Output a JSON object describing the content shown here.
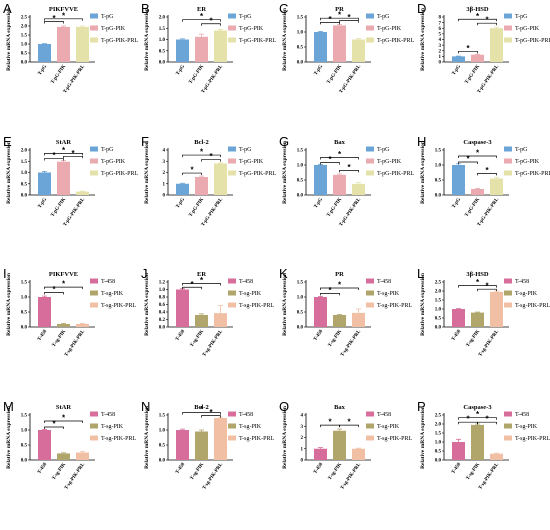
{
  "colors": {
    "top": [
      "#6ba4d6",
      "#eaaab0",
      "#e4e2a8"
    ],
    "bottom": [
      "#d76d9a",
      "#b0a66c",
      "#f1c0a4"
    ],
    "error": "#000000"
  },
  "chart_data": [
    {
      "letter": "A",
      "title": "PIKFVVE",
      "type": "bar",
      "categories": [
        "T-pG",
        "T-pG-PIK",
        "T-pG-PIK-PRL"
      ],
      "values": [
        1.0,
        1.95,
        1.95
      ],
      "errors": [
        0.02,
        0.05,
        0.05
      ],
      "ylim": [
        0,
        2.5
      ],
      "yticks": [
        0.0,
        0.5,
        1.0,
        1.5,
        2.0,
        2.5
      ],
      "ylabel": "Relative mRNA expression",
      "legend": [
        "T-pG",
        "T-pG-PIK",
        "T-pG-PIK-PRL"
      ],
      "legend_position": "right",
      "palette": "top",
      "sig": [
        [
          0,
          1,
          2.25
        ],
        [
          0,
          2,
          2.4
        ]
      ]
    },
    {
      "letter": "B",
      "title": "ER",
      "type": "bar",
      "categories": [
        "T-pG",
        "T-pG-PIK",
        "T-pG-PIK-PRL"
      ],
      "values": [
        1.0,
        1.12,
        1.4
      ],
      "errors": [
        0.03,
        0.12,
        0.05
      ],
      "ylim": [
        0,
        2.0
      ],
      "yticks": [
        0.0,
        0.5,
        1.0,
        1.5,
        2.0
      ],
      "ylabel": "Relative mRNA expression",
      "legend": [
        "T-pG",
        "T-pG-PIK",
        "T-pG-PIK-PRL"
      ],
      "legend_position": "right",
      "palette": "top",
      "sig": [
        [
          1,
          2,
          1.7
        ],
        [
          0,
          2,
          1.88
        ]
      ]
    },
    {
      "letter": "C",
      "title": "PR",
      "type": "bar",
      "categories": [
        "T-pG",
        "T-pG-PIK",
        "T-pG-PIK-PRL"
      ],
      "values": [
        1.0,
        1.22,
        0.75
      ],
      "errors": [
        0.02,
        0.03,
        0.03
      ],
      "ylim": [
        0,
        1.5
      ],
      "yticks": [
        0.0,
        0.5,
        1.0,
        1.5
      ],
      "ylabel": "Relative mRNA expression",
      "legend": [
        "T-pG",
        "T-pG-PIK",
        "T-pG-PIK-PRL"
      ],
      "legend_position": "right",
      "palette": "top",
      "sig": [
        [
          0,
          1,
          1.32
        ],
        [
          1,
          2,
          1.38
        ],
        [
          0,
          2,
          1.46
        ]
      ]
    },
    {
      "letter": "D",
      "title": "3β-HSD",
      "type": "bar",
      "categories": [
        "T-pG",
        "T-pG-PIK",
        "T-pG-PIK-PRL"
      ],
      "values": [
        1.0,
        1.3,
        6.0
      ],
      "errors": [
        0.05,
        0.08,
        0.2
      ],
      "ylim": [
        0,
        8
      ],
      "yticks": [
        0,
        1,
        2,
        3,
        4,
        5,
        6,
        7,
        8
      ],
      "ylabel": "Relative mRNA expression",
      "legend": [
        "T-pG",
        "T-pG-PIK",
        "T-pG-PIK-PRL"
      ],
      "legend_position": "right",
      "palette": "top",
      "sig": [
        [
          0,
          1,
          1.9
        ],
        [
          1,
          2,
          6.9
        ],
        [
          0,
          2,
          7.6
        ]
      ]
    },
    {
      "letter": "E",
      "title": "StAR",
      "type": "bar",
      "categories": [
        "T-pG",
        "T-pG-PIK",
        "T-pG-PIK-PRL"
      ],
      "values": [
        1.0,
        1.48,
        0.15
      ],
      "errors": [
        0.05,
        0.05,
        0.02
      ],
      "ylim": [
        0,
        2.0
      ],
      "yticks": [
        0.0,
        0.5,
        1.0,
        1.5,
        2.0
      ],
      "ylabel": "Relative mRNA expression",
      "legend": [
        "T-pG",
        "T-pG-PIK",
        "T-pG-PIK-PRL"
      ],
      "legend_position": "right",
      "palette": "top",
      "sig": [
        [
          0,
          1,
          1.62
        ],
        [
          1,
          2,
          1.72
        ],
        [
          0,
          2,
          1.85
        ]
      ]
    },
    {
      "letter": "F",
      "title": "Bcl-2",
      "type": "bar",
      "categories": [
        "T-pG",
        "T-pG-PIK",
        "T-pG-PIK-PRL"
      ],
      "values": [
        1.0,
        1.6,
        2.8
      ],
      "errors": [
        0.05,
        0.08,
        0.05
      ],
      "ylim": [
        0,
        4
      ],
      "yticks": [
        0,
        1,
        2,
        3,
        4
      ],
      "ylabel": "Relative mRNA expression",
      "legend": [
        "T-pG",
        "T-pG-PIK",
        "T-pG-PIK-PRL"
      ],
      "legend_position": "right",
      "palette": "top",
      "sig": [
        [
          0,
          1,
          1.95
        ],
        [
          1,
          2,
          3.15
        ],
        [
          0,
          2,
          3.55
        ]
      ]
    },
    {
      "letter": "G",
      "title": "Bax",
      "type": "bar",
      "categories": [
        "T-pG",
        "T-pG-PIK",
        "T-pG-PIK-PRL"
      ],
      "values": [
        1.0,
        0.67,
        0.37
      ],
      "errors": [
        0.02,
        0.03,
        0.04
      ],
      "ylim": [
        0,
        1.5
      ],
      "yticks": [
        0.0,
        0.5,
        1.0,
        1.5
      ],
      "ylabel": "Relative mRNA expression",
      "legend": [
        "T-pG",
        "T-pG-PIK",
        "T-pG-PIK-PRL"
      ],
      "legend_position": "right",
      "palette": "top",
      "sig": [
        [
          0,
          1,
          1.08
        ],
        [
          1,
          2,
          0.82
        ],
        [
          0,
          2,
          1.25
        ]
      ]
    },
    {
      "letter": "H",
      "title": "Caspase-3",
      "type": "bar",
      "categories": [
        "T-pG",
        "T-pG-PIK",
        "T-pG-PIK-PRL"
      ],
      "values": [
        1.0,
        0.2,
        0.55
      ],
      "errors": [
        0.04,
        0.02,
        0.04
      ],
      "ylim": [
        0,
        1.5
      ],
      "yticks": [
        0.0,
        0.5,
        1.0,
        1.5
      ],
      "ylabel": "Relative mRNA expression",
      "legend": [
        "T-pG",
        "T-pG-PIK",
        "T-pG-PIK-PRL"
      ],
      "legend_position": "right",
      "palette": "top",
      "sig": [
        [
          0,
          1,
          1.1
        ],
        [
          1,
          2,
          0.72
        ],
        [
          0,
          2,
          1.3
        ]
      ]
    },
    {
      "letter": "I",
      "title": "PIKFVVE",
      "type": "bar",
      "categories": [
        "T-458",
        "T-sg-PIK",
        "T-sg-PIK-PRL"
      ],
      "values": [
        1.0,
        0.1,
        0.1
      ],
      "errors": [
        0.03,
        0.02,
        0.02
      ],
      "ylim": [
        0,
        1.5
      ],
      "yticks": [
        0.0,
        0.5,
        1.0,
        1.5
      ],
      "ylabel": "Relative mRNA expression",
      "legend": [
        "T-458",
        "T-sg-PIK",
        "T-sg-PIK-PRL"
      ],
      "legend_position": "right",
      "palette": "bottom",
      "sig": [
        [
          0,
          1,
          1.15
        ],
        [
          0,
          2,
          1.33
        ]
      ]
    },
    {
      "letter": "J",
      "title": "ER",
      "type": "bar",
      "categories": [
        "T-458",
        "T-sg-PIK",
        "T-sg-PIK-PRL"
      ],
      "values": [
        1.0,
        0.32,
        0.37
      ],
      "errors": [
        0.02,
        0.03,
        0.2
      ],
      "ylim": [
        0,
        1.2
      ],
      "yticks": [
        0.0,
        0.2,
        0.4,
        0.6,
        0.8,
        1.0,
        1.2
      ],
      "ylabel": "Relative mRNA expression",
      "legend": [
        "T-458",
        "T-sg-PIK",
        "T-sg-PIK-PRL"
      ],
      "legend_position": "right",
      "palette": "bottom",
      "sig": [
        [
          0,
          1,
          1.06
        ],
        [
          0,
          2,
          1.16
        ]
      ]
    },
    {
      "letter": "K",
      "title": "PR",
      "type": "bar",
      "categories": [
        "T-458",
        "T-sg-PIK",
        "T-sg-PIK-PRL"
      ],
      "values": [
        1.0,
        0.4,
        0.47
      ],
      "errors": [
        0.02,
        0.02,
        0.13
      ],
      "ylim": [
        0,
        1.5
      ],
      "yticks": [
        0.0,
        0.5,
        1.0,
        1.5
      ],
      "ylabel": "Relative mRNA expression",
      "legend": [
        "T-458",
        "T-sg-PIK",
        "T-sg-PIK-PRL"
      ],
      "legend_position": "right",
      "palette": "bottom",
      "sig": [
        [
          0,
          1,
          1.12
        ],
        [
          0,
          2,
          1.3
        ]
      ]
    },
    {
      "letter": "L",
      "title": "3β-HSD",
      "type": "bar",
      "categories": [
        "T-458",
        "T-sg-PIK",
        "T-sg-PIK-PRL"
      ],
      "values": [
        1.0,
        0.8,
        1.95
      ],
      "errors": [
        0.02,
        0.03,
        0.05
      ],
      "ylim": [
        0,
        2.5
      ],
      "yticks": [
        0.0,
        0.5,
        1.0,
        1.5,
        2.0,
        2.5
      ],
      "ylabel": "Relative mRNA expression",
      "legend": [
        "T-458",
        "T-sg-PIK",
        "T-sg-PIK-PRL"
      ],
      "legend_position": "right",
      "palette": "bottom",
      "sig": [
        [
          1,
          2,
          2.1
        ],
        [
          0,
          2,
          2.3
        ]
      ]
    },
    {
      "letter": "M",
      "title": "StAR",
      "type": "bar",
      "categories": [
        "T-458",
        "T-sg-PIK",
        "T-sg-PIK-PRL"
      ],
      "values": [
        1.0,
        0.22,
        0.25
      ],
      "errors": [
        0.02,
        0.02,
        0.04
      ],
      "ylim": [
        0,
        1.5
      ],
      "yticks": [
        0.0,
        0.5,
        1.0,
        1.5
      ],
      "ylabel": "Relative mRNA expression",
      "legend": [
        "T-458",
        "T-sg-PIK",
        "T-sg-PIK-PRL"
      ],
      "legend_position": "right",
      "palette": "bottom",
      "sig": [
        [
          0,
          1,
          1.1
        ],
        [
          0,
          2,
          1.3
        ]
      ]
    },
    {
      "letter": "N",
      "title": "Bcl-2",
      "type": "bar",
      "categories": [
        "T-458",
        "T-sg-PIK",
        "T-sg-PIK-PRL"
      ],
      "values": [
        1.0,
        0.95,
        1.4
      ],
      "errors": [
        0.03,
        0.05,
        0.03
      ],
      "ylim": [
        0,
        1.5
      ],
      "yticks": [
        0.0,
        0.5,
        1.0,
        1.5
      ],
      "ylabel": "Relative mRNA expression",
      "legend": [
        "T-458",
        "T-sg-PIK",
        "T-sg-PIK-PRL"
      ],
      "legend_position": "right",
      "palette": "bottom",
      "sig": [
        [
          1,
          2,
          1.48
        ],
        [
          0,
          2,
          1.58
        ]
      ]
    },
    {
      "letter": "O",
      "title": "Bax",
      "type": "bar",
      "categories": [
        "T-458",
        "T-sg-PIK",
        "T-sg-PIK-PRL"
      ],
      "values": [
        1.0,
        2.6,
        1.0
      ],
      "errors": [
        0.1,
        0.15,
        0.05
      ],
      "ylim": [
        0,
        4
      ],
      "yticks": [
        0,
        1,
        2,
        3,
        4
      ],
      "ylabel": "Relative mRNA expression",
      "legend": [
        "T-458",
        "T-sg-PIK",
        "T-sg-PIK-PRL"
      ],
      "legend_position": "right",
      "palette": "bottom",
      "sig": [
        [
          0,
          1,
          3.1
        ],
        [
          1,
          2,
          3.1
        ]
      ]
    },
    {
      "letter": "P",
      "title": "Caspase-3",
      "type": "bar",
      "categories": [
        "T-458",
        "T-sg-PIK",
        "T-sg-PIK-PRL"
      ],
      "values": [
        1.0,
        1.95,
        0.35
      ],
      "errors": [
        0.15,
        0.05,
        0.03
      ],
      "ylim": [
        0,
        2.5
      ],
      "yticks": [
        0.0,
        0.5,
        1.0,
        1.5,
        2.0,
        2.5
      ],
      "ylabel": "Relative mRNA expression",
      "legend": [
        "T-458",
        "T-sg-PIK",
        "T-sg-PIK-PRL"
      ],
      "legend_position": "right",
      "palette": "bottom",
      "sig": [
        [
          0,
          1,
          2.1
        ],
        [
          1,
          2,
          2.1
        ],
        [
          0,
          2,
          2.35
        ]
      ]
    }
  ]
}
